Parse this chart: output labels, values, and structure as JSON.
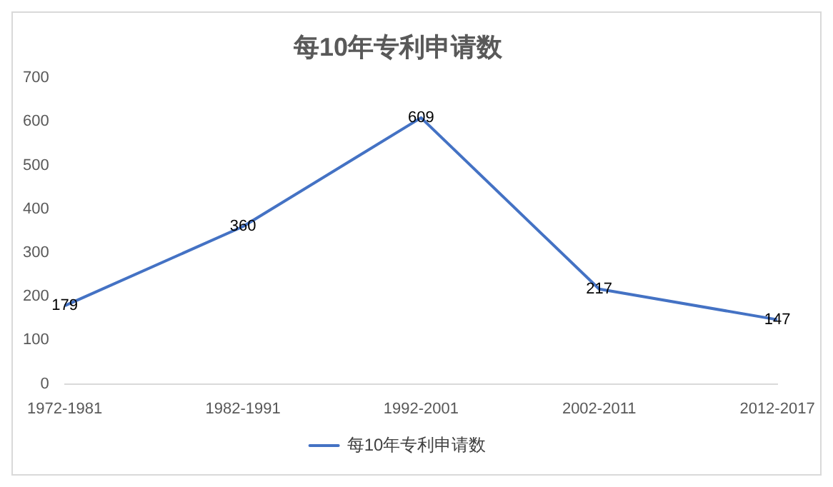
{
  "chart_data": {
    "type": "line",
    "title": "每10年专利申请数",
    "categories": [
      "1972-1981",
      "1982-1991",
      "1992-2001",
      "2002-2011",
      "2012-2017"
    ],
    "series": [
      {
        "name": "每10年专利申请数",
        "color": "#4472c4",
        "values": [
          179,
          360,
          609,
          217,
          147
        ]
      }
    ],
    "ylim": [
      0,
      700
    ],
    "yticks": [
      0,
      100,
      200,
      300,
      400,
      500,
      600,
      700
    ],
    "grid": false,
    "legend": "bottom",
    "data_labels": true,
    "marker": "none"
  }
}
